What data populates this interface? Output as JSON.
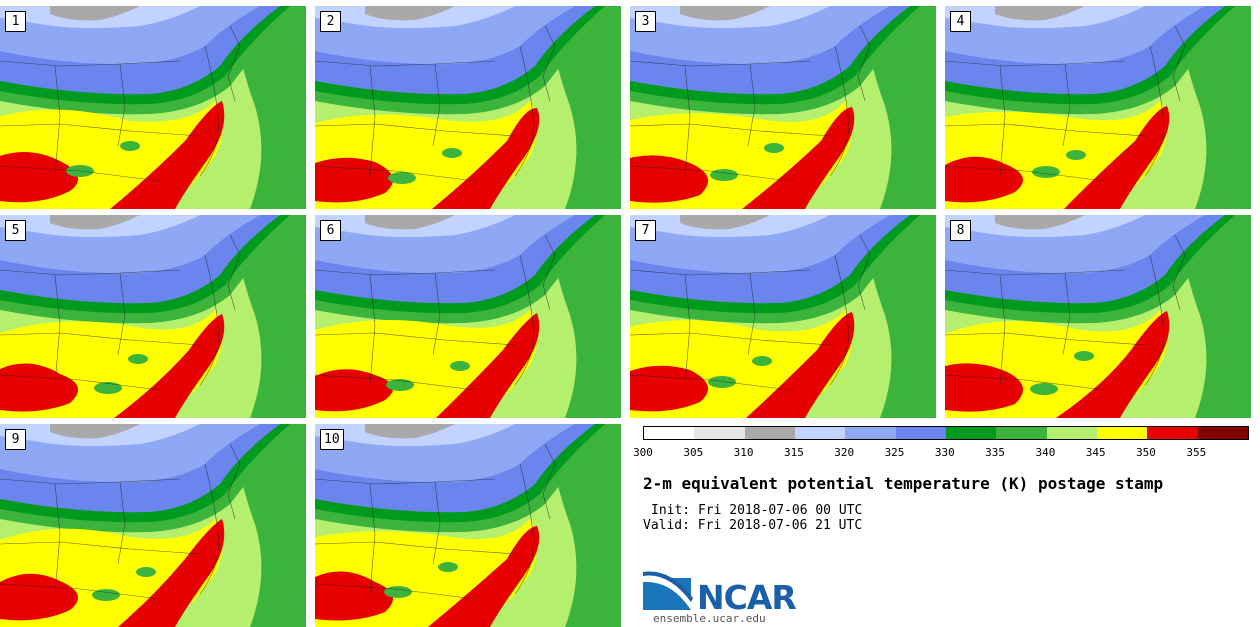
{
  "panels": [
    {
      "label": "1"
    },
    {
      "label": "2"
    },
    {
      "label": "3"
    },
    {
      "label": "4"
    },
    {
      "label": "5"
    },
    {
      "label": "6"
    },
    {
      "label": "7"
    },
    {
      "label": "8"
    },
    {
      "label": "9"
    },
    {
      "label": "10"
    }
  ],
  "colorbar": {
    "ticks": [
      "300",
      "305",
      "310",
      "315",
      "320",
      "325",
      "330",
      "335",
      "340",
      "345",
      "350",
      "355"
    ],
    "colors": [
      "#ffffff",
      "#e6e6e6",
      "#a9a9a9",
      "#c3d3ff",
      "#8fa8f5",
      "#6b85ee",
      "#009a1e",
      "#3cb43c",
      "#b4f06e",
      "#ffff00",
      "#e60000",
      "#820000"
    ]
  },
  "title": "2-m equivalent potential temperature (K) postage stamp",
  "init": "Init: Fri 2018-07-06 00 UTC",
  "valid": "Valid: Fri 2018-07-06 21 UTC",
  "logo": {
    "name": "NCAR",
    "url": "ensemble.ucar.edu"
  }
}
